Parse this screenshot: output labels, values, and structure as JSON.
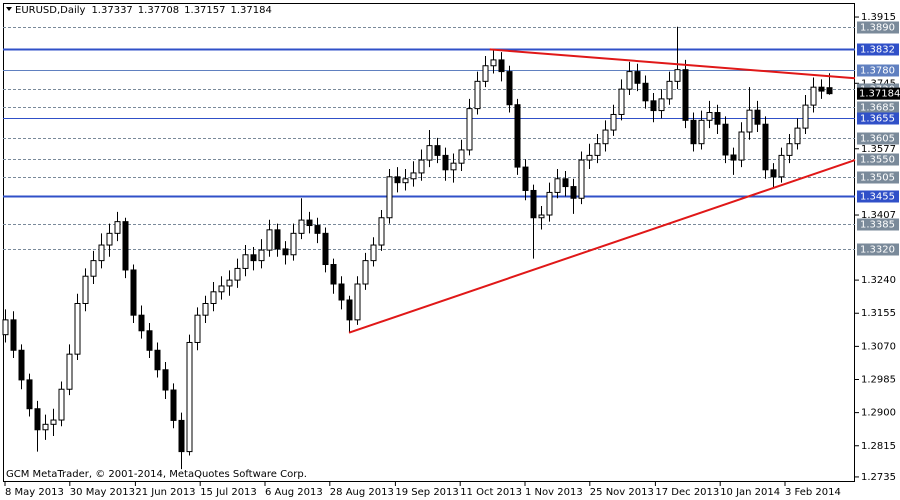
{
  "chart_data": {
    "type": "candlestick",
    "symbol": "EURUSD,Daily",
    "footer": "GCM MetaTrader, © 2001-2014, MetaQuotes Software Corp.",
    "bull_color": "#ffffff",
    "bear_color": "#000000",
    "wick_color": "#000000",
    "ylim": [
      1.2722,
      1.3951
    ],
    "xlim": [
      -0.25,
      106.25
    ],
    "yticks": [
      1.3915,
      1.3745,
      1.3577,
      {
        "value": 1.3407,
        "label": "1.3407"
      },
      {
        "value": 1.324,
        "label": "1.3240"
      },
      1.3155,
      {
        "value": 1.307,
        "label": "1.3070"
      },
      1.2985,
      {
        "value": 1.29,
        "label": "1.2900"
      },
      1.2815,
      1.2735
    ],
    "xticks": [
      {
        "value": 0,
        "label": "8 May 2013"
      },
      {
        "value": 8.1,
        "label": "30 May 2013"
      },
      {
        "value": 16.3,
        "label": "21 Jun 2013"
      },
      {
        "value": 24.4,
        "label": "15 Jul 2013"
      },
      {
        "value": 32.5,
        "label": "6 Aug 2013"
      },
      {
        "value": 40.6,
        "label": "28 Aug 2013"
      },
      {
        "value": 48.8,
        "label": "19 Sep 2013"
      },
      {
        "value": 56.9,
        "label": "11 Oct 2013"
      },
      {
        "value": 65,
        "label": "1 Nov 2013"
      },
      {
        "value": 73.1,
        "label": "25 Nov 2013"
      },
      {
        "value": 81.3,
        "label": "17 Dec 2013"
      },
      {
        "value": 89.4,
        "label": "10 Jan 2014"
      },
      {
        "value": 97.5,
        "label": "3 Feb 2014"
      }
    ],
    "levels": [
      {
        "value": 1.389,
        "label": "1.3890",
        "style": "dashed",
        "color": "#7a8a9a",
        "width": 1
      },
      {
        "value": 1.3832,
        "label": "1.3832",
        "style": "solid",
        "color": "#3050c8",
        "width": 2
      },
      {
        "value": 1.378,
        "label": "1.3780",
        "style": "solid",
        "color": "#6080c0",
        "width": 1
      },
      {
        "value": 1.373,
        "label": "1.3730",
        "style": "dashed",
        "color": "#7a8a9a",
        "width": 1
      },
      {
        "value": 1.3685,
        "label": "1.3685",
        "style": "dashed",
        "color": "#7a8a9a",
        "width": 1
      },
      {
        "value": 1.3655,
        "label": "1.3655",
        "style": "solid",
        "color": "#3050c8",
        "width": 1
      },
      {
        "value": 1.3605,
        "label": "1.3605",
        "style": "dashed",
        "color": "#7a8a9a",
        "width": 1
      },
      {
        "value": 1.355,
        "label": "1.3550",
        "style": "dashed",
        "color": "#7a8a9a",
        "width": 1
      },
      {
        "value": 1.3505,
        "label": "1.3505",
        "style": "dashed",
        "color": "#7a8a9a",
        "width": 1
      },
      {
        "value": 1.3455,
        "label": "1.3455",
        "style": "solid",
        "color": "#3050c8",
        "width": 2
      },
      {
        "value": 1.3385,
        "label": "1.3385",
        "style": "dashed",
        "color": "#7a8a9a",
        "width": 1
      },
      {
        "value": 1.332,
        "label": "1.3320",
        "style": "dashed",
        "color": "#7a8a9a",
        "width": 1
      }
    ],
    "trendlines": [
      {
        "color": "#e01818",
        "points": [
          [
            43,
            1.3105
          ],
          [
            106.25,
            1.3548
          ]
        ]
      },
      {
        "color": "#e01818",
        "points": [
          [
            60.6,
            1.3832
          ],
          [
            106.25,
            1.3758
          ]
        ]
      }
    ],
    "ohlc": [
      [
        1.31,
        1.3165,
        1.308,
        1.3138
      ],
      [
        1.3138,
        1.316,
        1.304,
        1.306
      ],
      [
        1.306,
        1.3075,
        1.296,
        1.2984
      ],
      [
        1.2984,
        1.3,
        1.289,
        1.291
      ],
      [
        1.291,
        1.293,
        1.28,
        1.2856
      ],
      [
        1.2856,
        1.2895,
        1.283,
        1.287
      ],
      [
        1.287,
        1.291,
        1.284,
        1.2881
      ],
      [
        1.2881,
        1.298,
        1.2865,
        1.296
      ],
      [
        1.296,
        1.3075,
        1.2945,
        1.305
      ],
      [
        1.305,
        1.3205,
        1.3035,
        1.318
      ],
      [
        1.318,
        1.327,
        1.316,
        1.325
      ],
      [
        1.325,
        1.3315,
        1.323,
        1.329
      ],
      [
        1.329,
        1.336,
        1.327,
        1.333
      ],
      [
        1.333,
        1.3385,
        1.33,
        1.336
      ],
      [
        1.336,
        1.3415,
        1.334,
        1.339
      ],
      [
        1.339,
        1.34,
        1.3245,
        1.3266
      ],
      [
        1.3266,
        1.328,
        1.313,
        1.315
      ],
      [
        1.315,
        1.3175,
        1.309,
        1.311
      ],
      [
        1.311,
        1.313,
        1.304,
        1.306
      ],
      [
        1.306,
        1.308,
        1.299,
        1.301
      ],
      [
        1.301,
        1.303,
        1.2935,
        1.2958
      ],
      [
        1.2958,
        1.2975,
        1.286,
        1.288
      ],
      [
        1.288,
        1.29,
        1.2755,
        1.28
      ],
      [
        1.28,
        1.31,
        1.279,
        1.308
      ],
      [
        1.308,
        1.317,
        1.306,
        1.315
      ],
      [
        1.315,
        1.32,
        1.313,
        1.318
      ],
      [
        1.318,
        1.3235,
        1.316,
        1.321
      ],
      [
        1.321,
        1.325,
        1.319,
        1.3225
      ],
      [
        1.3225,
        1.3265,
        1.32,
        1.324
      ],
      [
        1.324,
        1.3295,
        1.322,
        1.327
      ],
      [
        1.327,
        1.333,
        1.325,
        1.3305
      ],
      [
        1.3305,
        1.3325,
        1.3265,
        1.329
      ],
      [
        1.329,
        1.3345,
        1.327,
        1.3317
      ],
      [
        1.3317,
        1.3395,
        1.33,
        1.3369
      ],
      [
        1.3369,
        1.3385,
        1.33,
        1.332
      ],
      [
        1.332,
        1.334,
        1.328,
        1.3305
      ],
      [
        1.3305,
        1.3385,
        1.329,
        1.336
      ],
      [
        1.336,
        1.345,
        1.3345,
        1.3394
      ],
      [
        1.3394,
        1.3415,
        1.336,
        1.338
      ],
      [
        1.338,
        1.34,
        1.3335,
        1.336
      ],
      [
        1.336,
        1.3375,
        1.326,
        1.328
      ],
      [
        1.328,
        1.3295,
        1.3205,
        1.323
      ],
      [
        1.323,
        1.325,
        1.3165,
        1.3189
      ],
      [
        1.3189,
        1.32,
        1.3105,
        1.3138
      ],
      [
        1.3138,
        1.325,
        1.3125,
        1.323
      ],
      [
        1.323,
        1.331,
        1.3215,
        1.329
      ],
      [
        1.329,
        1.335,
        1.3275,
        1.333
      ],
      [
        1.333,
        1.342,
        1.3315,
        1.34
      ],
      [
        1.34,
        1.3525,
        1.3385,
        1.3505
      ],
      [
        1.3505,
        1.353,
        1.3465,
        1.349
      ],
      [
        1.349,
        1.3525,
        1.347,
        1.35
      ],
      [
        1.35,
        1.3545,
        1.348,
        1.3515
      ],
      [
        1.3515,
        1.3575,
        1.3495,
        1.3548
      ],
      [
        1.3548,
        1.3625,
        1.353,
        1.3585
      ],
      [
        1.3585,
        1.3605,
        1.354,
        1.356
      ],
      [
        1.356,
        1.358,
        1.3495,
        1.3523
      ],
      [
        1.3523,
        1.3565,
        1.349,
        1.354
      ],
      [
        1.354,
        1.36,
        1.352,
        1.3574
      ],
      [
        1.3574,
        1.3705,
        1.356,
        1.368
      ],
      [
        1.368,
        1.3775,
        1.3665,
        1.375
      ],
      [
        1.375,
        1.3815,
        1.3735,
        1.379
      ],
      [
        1.379,
        1.3832,
        1.377,
        1.3805
      ],
      [
        1.3805,
        1.3825,
        1.375,
        1.3775
      ],
      [
        1.3775,
        1.379,
        1.367,
        1.369
      ],
      [
        1.369,
        1.3705,
        1.351,
        1.353
      ],
      [
        1.353,
        1.355,
        1.3445,
        1.347
      ],
      [
        1.347,
        1.3485,
        1.3295,
        1.34
      ],
      [
        1.34,
        1.343,
        1.337,
        1.3407
      ],
      [
        1.3407,
        1.349,
        1.339,
        1.3465
      ],
      [
        1.3465,
        1.3525,
        1.345,
        1.35
      ],
      [
        1.35,
        1.352,
        1.3455,
        1.348
      ],
      [
        1.348,
        1.35,
        1.341,
        1.345
      ],
      [
        1.345,
        1.357,
        1.3435,
        1.3548
      ],
      [
        1.3548,
        1.359,
        1.3525,
        1.356
      ],
      [
        1.356,
        1.3615,
        1.354,
        1.359
      ],
      [
        1.359,
        1.365,
        1.357,
        1.3625
      ],
      [
        1.3625,
        1.369,
        1.361,
        1.3665
      ],
      [
        1.3665,
        1.3755,
        1.365,
        1.373
      ],
      [
        1.373,
        1.38,
        1.3715,
        1.3775
      ],
      [
        1.3775,
        1.3795,
        1.3725,
        1.3745
      ],
      [
        1.3745,
        1.3765,
        1.368,
        1.37
      ],
      [
        1.37,
        1.372,
        1.3645,
        1.3675
      ],
      [
        1.3675,
        1.373,
        1.3655,
        1.3705
      ],
      [
        1.3705,
        1.3775,
        1.369,
        1.375
      ],
      [
        1.375,
        1.389,
        1.373,
        1.378
      ],
      [
        1.378,
        1.3805,
        1.363,
        1.365
      ],
      [
        1.365,
        1.367,
        1.357,
        1.359
      ],
      [
        1.359,
        1.3675,
        1.3575,
        1.365
      ],
      [
        1.365,
        1.37,
        1.363,
        1.367
      ],
      [
        1.367,
        1.369,
        1.3615,
        1.364
      ],
      [
        1.364,
        1.366,
        1.354,
        1.3561
      ],
      [
        1.3561,
        1.358,
        1.351,
        1.3548
      ],
      [
        1.3548,
        1.3645,
        1.353,
        1.362
      ],
      [
        1.362,
        1.3735,
        1.36,
        1.3676
      ],
      [
        1.3676,
        1.37,
        1.362,
        1.364
      ],
      [
        1.364,
        1.366,
        1.35,
        1.3523
      ],
      [
        1.3523,
        1.354,
        1.3475,
        1.3505
      ],
      [
        1.3505,
        1.358,
        1.349,
        1.356
      ],
      [
        1.356,
        1.3615,
        1.354,
        1.359
      ],
      [
        1.359,
        1.3655,
        1.3575,
        1.363
      ],
      [
        1.363,
        1.3715,
        1.3615,
        1.3689
      ],
      [
        1.3689,
        1.376,
        1.367,
        1.3735
      ],
      [
        1.3735,
        1.3755,
        1.3705,
        1.3725
      ],
      [
        1.37337,
        1.37708,
        1.37157,
        1.37184
      ]
    ]
  }
}
